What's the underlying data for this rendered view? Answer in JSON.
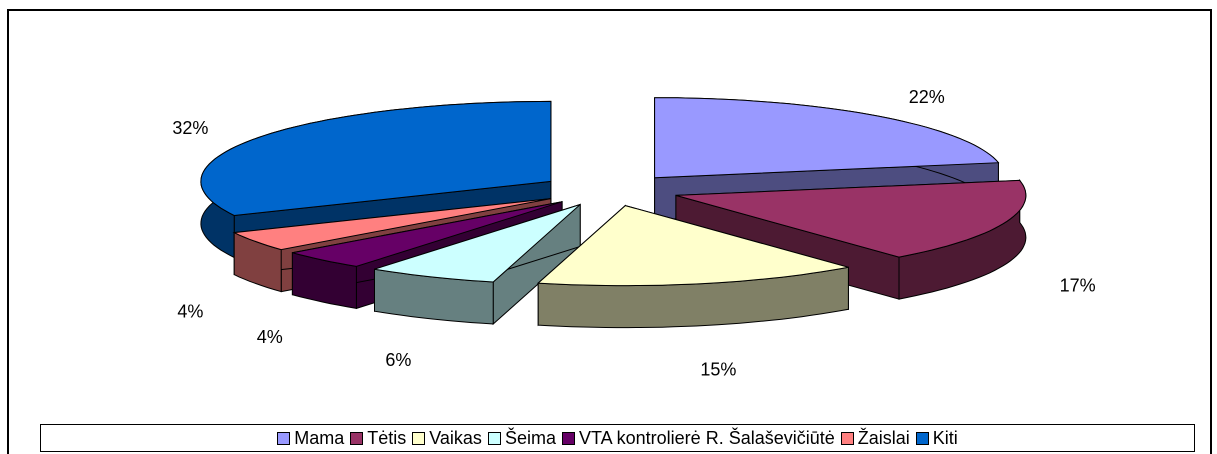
{
  "chart_data": {
    "type": "pie",
    "three_d": true,
    "exploded": true,
    "categories": [
      "Mama",
      "Tėtis",
      "Vaikas",
      "Šeima",
      "VTA kontrolierė R. Šalaševičiūtė",
      "Žaislai",
      "Kiti"
    ],
    "values": [
      22,
      17,
      15,
      6,
      4,
      4,
      32
    ],
    "value_labels": [
      "22%",
      "17%",
      "15%",
      "6%",
      "4%",
      "4%",
      "32%"
    ],
    "colors": [
      "#9999ff",
      "#993366",
      "#ffffcc",
      "#ccffff",
      "#660066",
      "#ff8080",
      "#0066cc"
    ],
    "legend": "bottom"
  }
}
